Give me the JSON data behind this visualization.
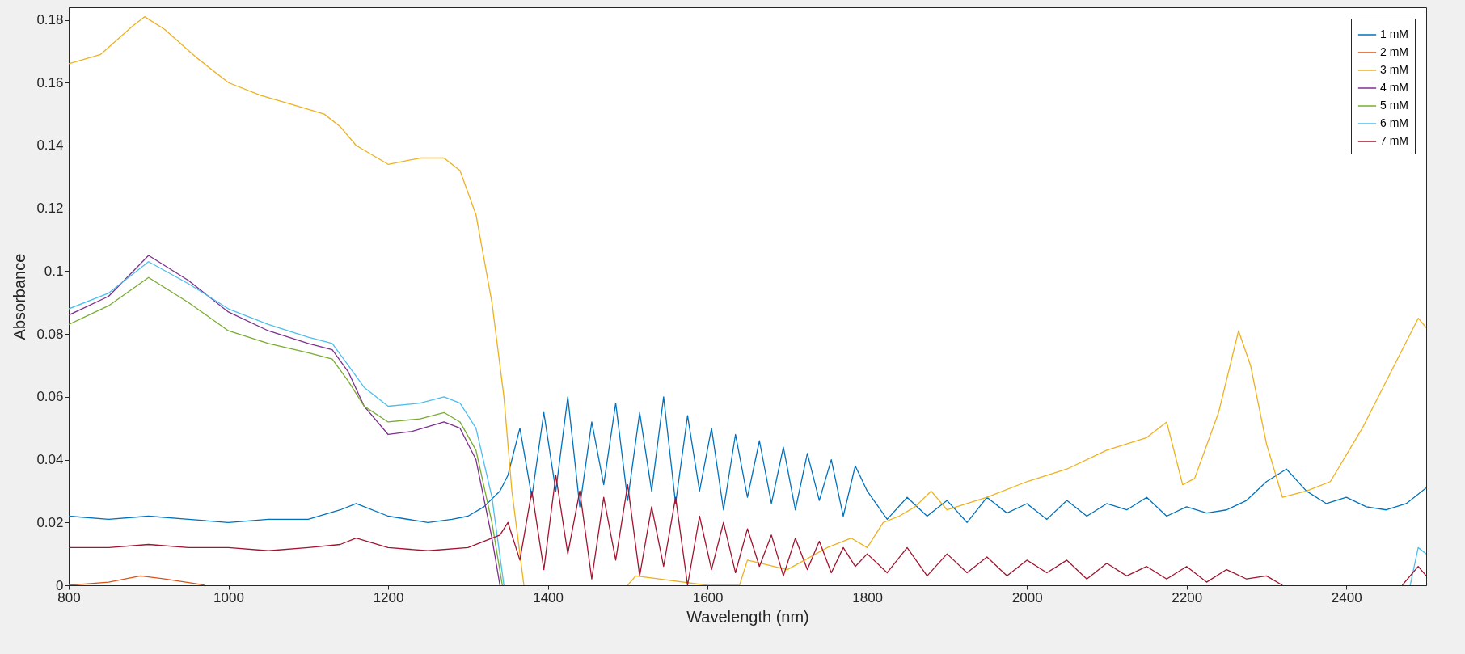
{
  "chart_data": {
    "type": "line",
    "xlabel": "Wavelength (nm)",
    "ylabel": "Absorbance",
    "xlim": [
      800,
      2500
    ],
    "ylim": [
      0,
      0.184
    ],
    "xticks": [
      800,
      1000,
      1200,
      1400,
      1600,
      1800,
      2000,
      2200,
      2400
    ],
    "yticks": [
      0,
      0.02,
      0.04,
      0.06,
      0.08,
      0.1,
      0.12,
      0.14,
      0.16,
      0.18
    ],
    "grid": false,
    "legend": "top right",
    "marker": "none",
    "line_style": "solid",
    "series": [
      {
        "name": "1 mM",
        "color": "#0072bd",
        "x": [
          800,
          850,
          900,
          950,
          1000,
          1050,
          1100,
          1140,
          1160,
          1200,
          1250,
          1280,
          1300,
          1320,
          1340,
          1350,
          1365,
          1380,
          1395,
          1410,
          1425,
          1440,
          1455,
          1470,
          1485,
          1500,
          1515,
          1530,
          1545,
          1560,
          1575,
          1590,
          1605,
          1620,
          1635,
          1650,
          1665,
          1680,
          1695,
          1710,
          1725,
          1740,
          1755,
          1770,
          1785,
          1800,
          1825,
          1850,
          1875,
          1900,
          1925,
          1950,
          1975,
          2000,
          2025,
          2050,
          2075,
          2100,
          2125,
          2150,
          2175,
          2200,
          2225,
          2250,
          2275,
          2300,
          2325,
          2350,
          2375,
          2400,
          2425,
          2450,
          2475,
          2500
        ],
        "values": [
          0.022,
          0.021,
          0.022,
          0.021,
          0.02,
          0.021,
          0.021,
          0.024,
          0.026,
          0.022,
          0.02,
          0.021,
          0.022,
          0.025,
          0.03,
          0.035,
          0.05,
          0.028,
          0.055,
          0.03,
          0.06,
          0.025,
          0.052,
          0.032,
          0.058,
          0.027,
          0.055,
          0.03,
          0.06,
          0.026,
          0.054,
          0.03,
          0.05,
          0.024,
          0.048,
          0.028,
          0.046,
          0.026,
          0.044,
          0.024,
          0.042,
          0.027,
          0.04,
          0.022,
          0.038,
          0.03,
          0.021,
          0.028,
          0.022,
          0.027,
          0.02,
          0.028,
          0.023,
          0.026,
          0.021,
          0.027,
          0.022,
          0.026,
          0.024,
          0.028,
          0.022,
          0.025,
          0.023,
          0.024,
          0.027,
          0.033,
          0.037,
          0.03,
          0.026,
          0.028,
          0.025,
          0.024,
          0.026,
          0.031
        ]
      },
      {
        "name": "2 mM",
        "color": "#d95319",
        "x": [
          800,
          850,
          890,
          920,
          960,
          970
        ],
        "values": [
          0,
          0.001,
          0.003,
          0.002,
          0.0005,
          0
        ]
      },
      {
        "name": "3 mM",
        "color": "#edb120",
        "x": [
          800,
          840,
          880,
          895,
          920,
          960,
          1000,
          1040,
          1080,
          1120,
          1140,
          1160,
          1200,
          1240,
          1270,
          1290,
          1310,
          1330,
          1345,
          1355,
          1365,
          1370,
          1380,
          1500,
          1510,
          1600,
          1640,
          1650,
          1700,
          1750,
          1780,
          1800,
          1820,
          1840,
          1860,
          1880,
          1900,
          1950,
          2000,
          2050,
          2100,
          2150,
          2175,
          2195,
          2210,
          2240,
          2265,
          2280,
          2300,
          2320,
          2350,
          2380,
          2420,
          2460,
          2490,
          2500
        ],
        "values": [
          0.166,
          0.169,
          0.178,
          0.181,
          0.177,
          0.168,
          0.16,
          0.156,
          0.153,
          0.15,
          0.146,
          0.14,
          0.134,
          0.136,
          0.136,
          0.132,
          0.118,
          0.09,
          0.06,
          0.03,
          0.01,
          0,
          null,
          0,
          0.003,
          0,
          0,
          0.008,
          0.005,
          0.012,
          0.015,
          0.012,
          0.02,
          0.022,
          0.025,
          0.03,
          0.024,
          0.028,
          0.033,
          0.037,
          0.043,
          0.047,
          0.052,
          0.032,
          0.034,
          0.055,
          0.081,
          0.07,
          0.045,
          0.028,
          0.03,
          0.033,
          0.05,
          0.07,
          0.085,
          0.082
        ]
      },
      {
        "name": "4 mM",
        "color": "#7e2f8e",
        "x": [
          800,
          850,
          900,
          950,
          1000,
          1050,
          1100,
          1130,
          1150,
          1170,
          1200,
          1230,
          1270,
          1290,
          1310,
          1330,
          1340
        ],
        "values": [
          0.086,
          0.092,
          0.105,
          0.097,
          0.087,
          0.081,
          0.077,
          0.075,
          0.068,
          0.057,
          0.048,
          0.049,
          0.052,
          0.05,
          0.04,
          0.015,
          0
        ]
      },
      {
        "name": "5 mM",
        "color": "#77ac30",
        "x": [
          800,
          850,
          900,
          950,
          1000,
          1050,
          1100,
          1130,
          1150,
          1170,
          1200,
          1240,
          1270,
          1290,
          1310,
          1330,
          1343
        ],
        "values": [
          0.083,
          0.089,
          0.098,
          0.09,
          0.081,
          0.077,
          0.074,
          0.072,
          0.065,
          0.057,
          0.052,
          0.053,
          0.055,
          0.052,
          0.043,
          0.02,
          0
        ]
      },
      {
        "name": "6 mM",
        "color": "#4dbeee",
        "x": [
          800,
          850,
          900,
          950,
          1000,
          1050,
          1100,
          1130,
          1150,
          1170,
          1200,
          1240,
          1270,
          1290,
          1310,
          1330,
          1345,
          1360,
          2480,
          2490,
          2500
        ],
        "values": [
          0.088,
          0.093,
          0.103,
          0.096,
          0.088,
          0.083,
          0.079,
          0.077,
          0.07,
          0.063,
          0.057,
          0.058,
          0.06,
          0.058,
          0.05,
          0.028,
          0,
          null,
          0,
          0.012,
          0.01
        ]
      },
      {
        "name": "7 mM",
        "color": "#a2142f",
        "x": [
          800,
          850,
          900,
          950,
          1000,
          1050,
          1100,
          1140,
          1160,
          1200,
          1250,
          1300,
          1340,
          1350,
          1365,
          1380,
          1395,
          1410,
          1425,
          1440,
          1455,
          1470,
          1485,
          1500,
          1515,
          1530,
          1545,
          1560,
          1575,
          1590,
          1605,
          1620,
          1635,
          1650,
          1665,
          1680,
          1695,
          1710,
          1725,
          1740,
          1755,
          1770,
          1785,
          1800,
          1825,
          1850,
          1875,
          1900,
          1925,
          1950,
          1975,
          2000,
          2025,
          2050,
          2075,
          2100,
          2125,
          2150,
          2175,
          2200,
          2225,
          2250,
          2275,
          2300,
          2320,
          2340,
          2470,
          2490,
          2500
        ],
        "values": [
          0.012,
          0.012,
          0.013,
          0.012,
          0.012,
          0.011,
          0.012,
          0.013,
          0.015,
          0.012,
          0.011,
          0.012,
          0.016,
          0.02,
          0.008,
          0.03,
          0.005,
          0.035,
          0.01,
          0.03,
          0.002,
          0.028,
          0.008,
          0.032,
          0.003,
          0.025,
          0.006,
          0.028,
          0,
          0.022,
          0.005,
          0.02,
          0.004,
          0.018,
          0.006,
          0.016,
          0.003,
          0.015,
          0.005,
          0.014,
          0.004,
          0.012,
          0.006,
          0.01,
          0.004,
          0.012,
          0.003,
          0.01,
          0.004,
          0.009,
          0.003,
          0.008,
          0.004,
          0.008,
          0.002,
          0.007,
          0.003,
          0.006,
          0.002,
          0.006,
          0.001,
          0.005,
          0.002,
          0.003,
          0,
          null,
          0,
          0.006,
          0.003
        ]
      }
    ]
  }
}
